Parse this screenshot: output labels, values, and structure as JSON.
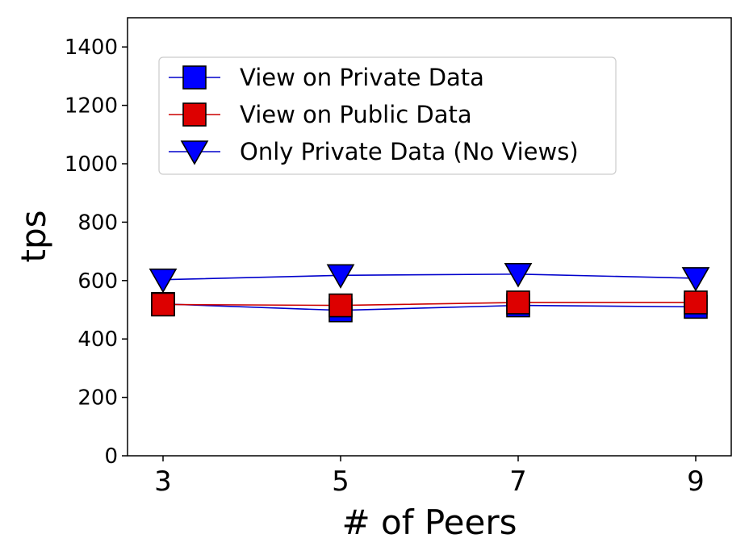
{
  "chart_data": {
    "type": "line",
    "title": "",
    "xlabel": "# of Peers",
    "ylabel": "tps",
    "x": [
      3,
      5,
      7,
      9
    ],
    "xticks": [
      "3",
      "5",
      "7",
      "9"
    ],
    "yticks": [
      "0",
      "200",
      "400",
      "600",
      "800",
      "1000",
      "1200",
      "1400"
    ],
    "ylim": [
      0,
      1500
    ],
    "grid": false,
    "legend_position": "upper-left",
    "series": [
      {
        "name": "View on Private Data",
        "values": [
          520,
          498,
          515,
          510
        ],
        "line_color": "#0000cc",
        "marker": "square",
        "marker_color": "#0000ff"
      },
      {
        "name": "View on Public Data",
        "values": [
          518,
          515,
          525,
          525
        ],
        "line_color": "#cc0000",
        "marker": "square",
        "marker_color": "#dd0000"
      },
      {
        "name": "Only Private Data (No Views)",
        "values": [
          603,
          618,
          622,
          608
        ],
        "line_color": "#0000cc",
        "marker": "triangle-down",
        "marker_color": "#0000ff"
      }
    ]
  }
}
